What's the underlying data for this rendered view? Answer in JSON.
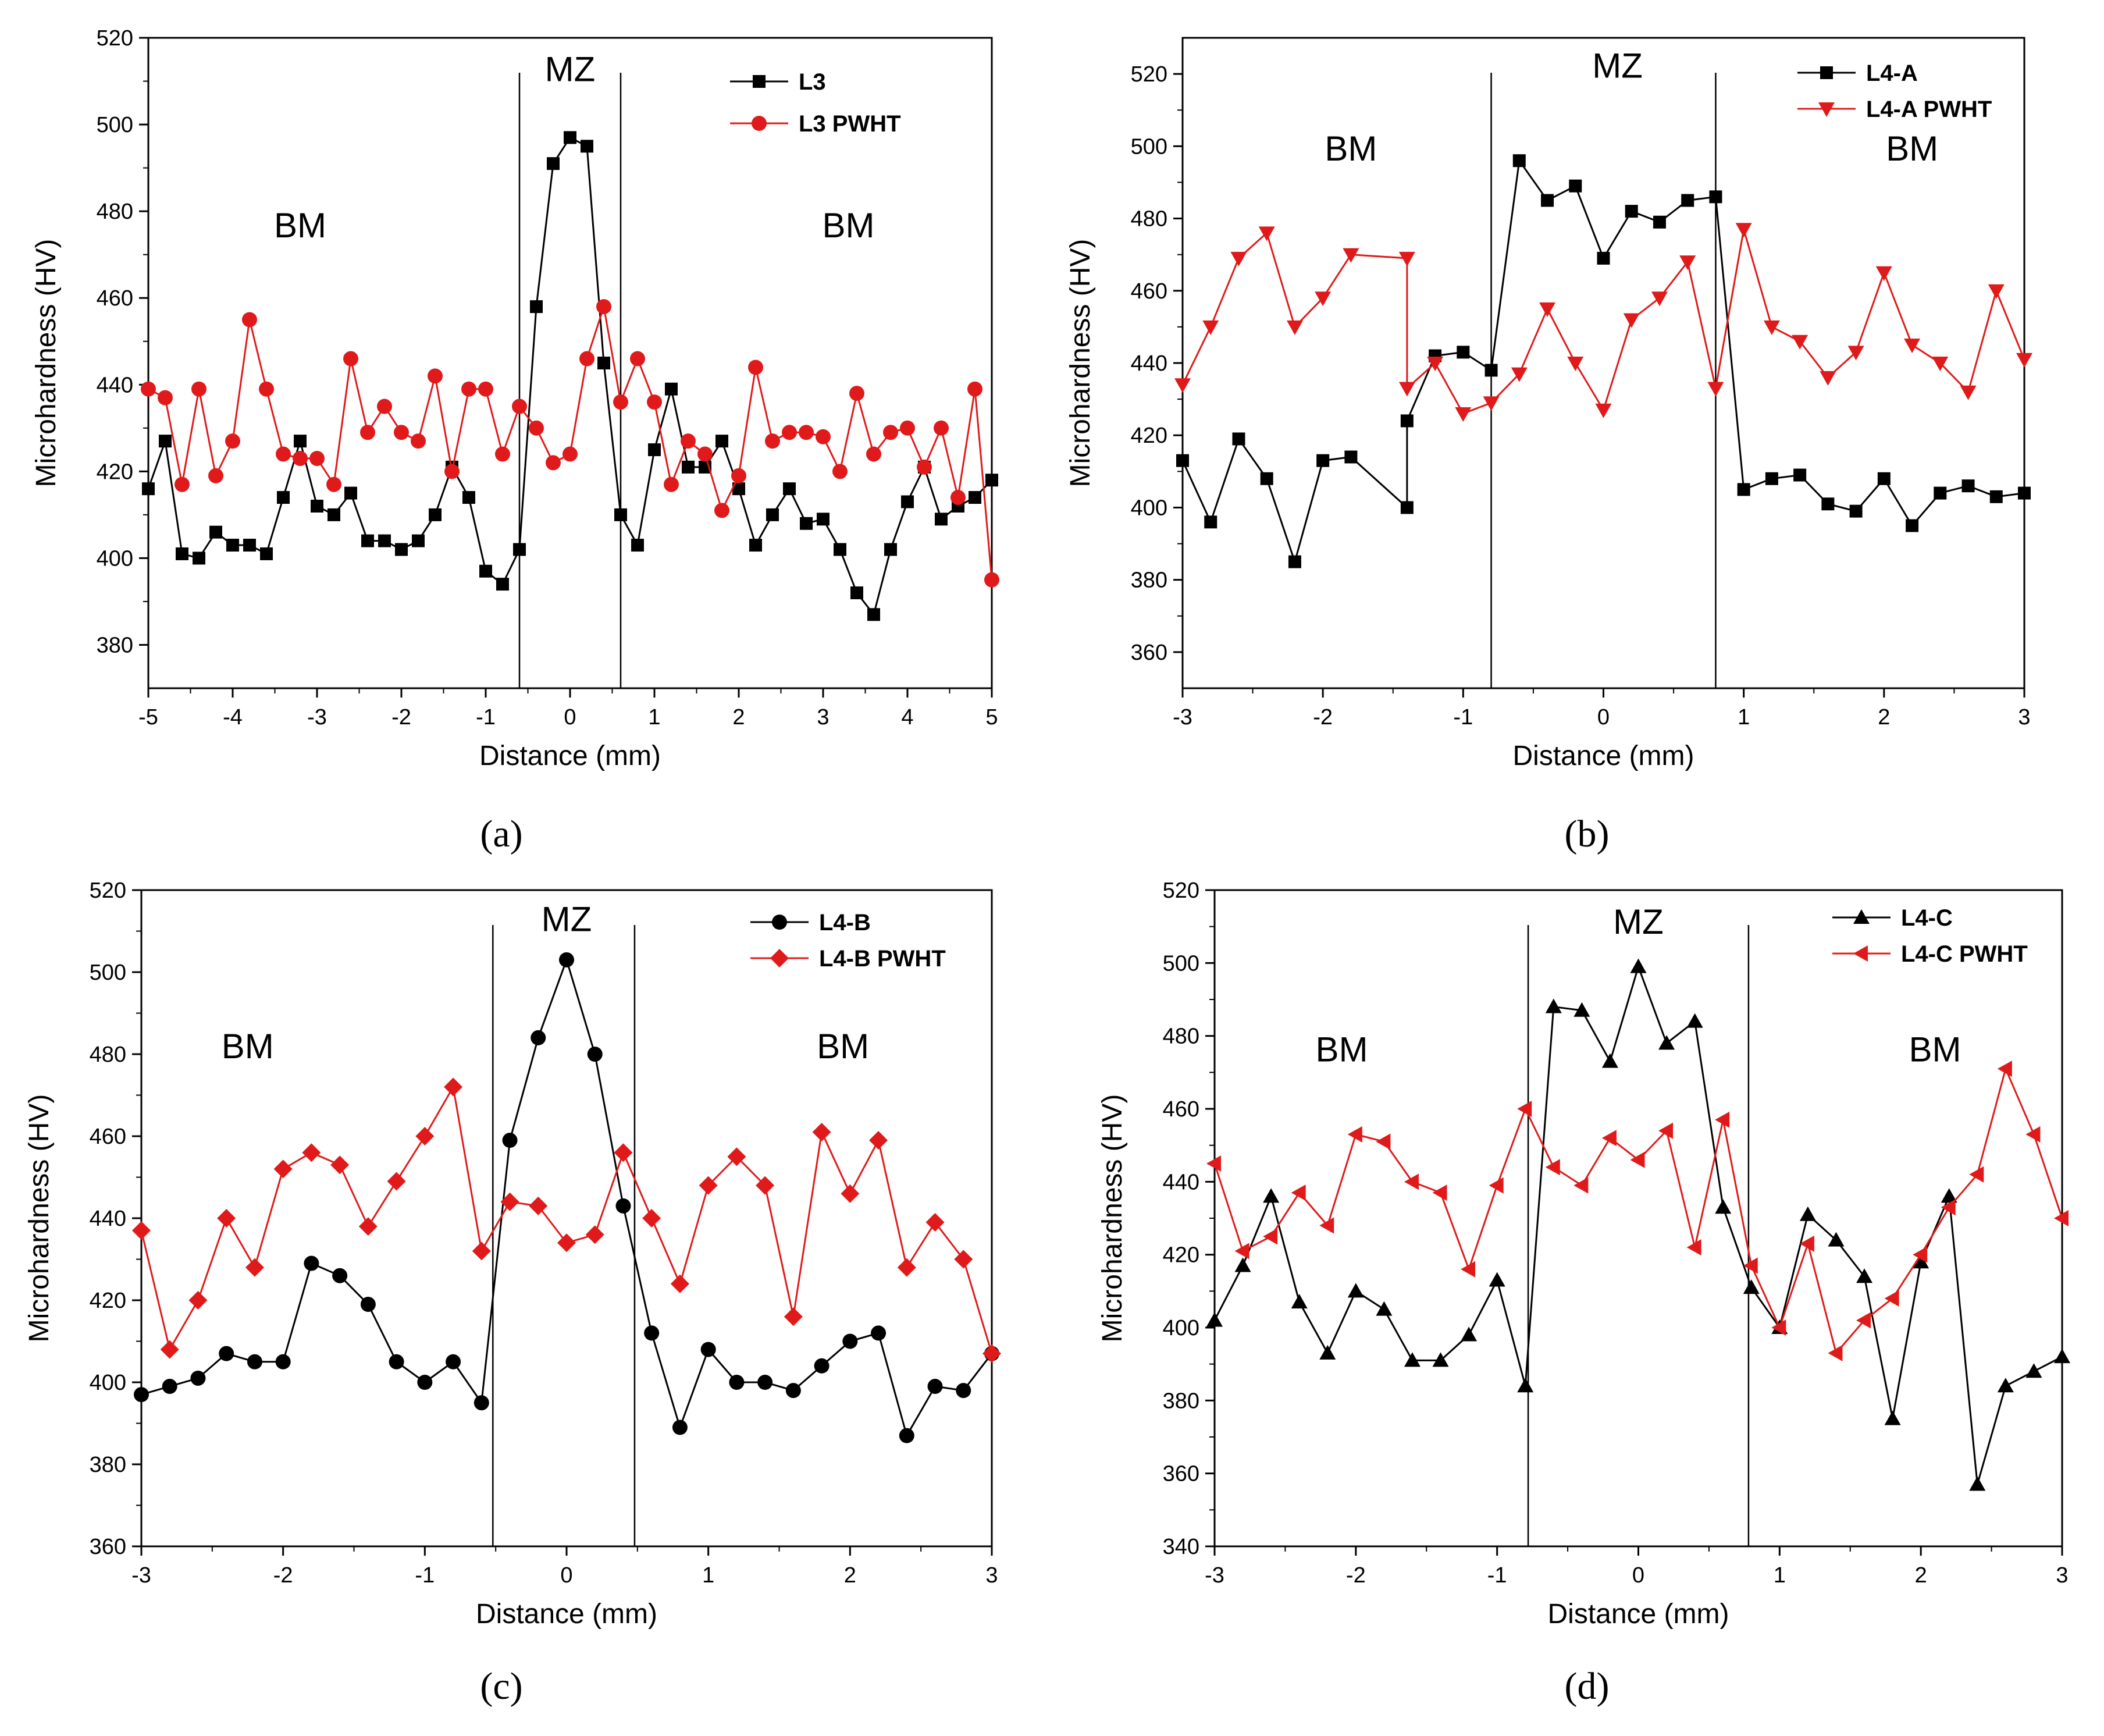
{
  "chart_data": [
    {
      "type": "line",
      "panel": "a",
      "caption": "(a)",
      "xlabel": "Distance (mm)",
      "ylabel": "Microhardness (HV)",
      "xlim": [
        -5,
        5
      ],
      "ylim": [
        370,
        520
      ],
      "xticks": [
        -5,
        -4,
        -3,
        -2,
        -1,
        0,
        1,
        2,
        3,
        4,
        5
      ],
      "yticks": [
        380,
        400,
        420,
        440,
        460,
        480,
        500,
        520
      ],
      "boundaries": [
        -0.6,
        0.6
      ],
      "legend_position": "top-right",
      "regions": [
        {
          "label": "MZ",
          "x": 0,
          "y": 510
        },
        {
          "label": "BM",
          "x": -3.2,
          "y": 474
        },
        {
          "label": "BM",
          "x": 3.3,
          "y": 474
        }
      ],
      "series": [
        {
          "name": "L3",
          "color": "#000000",
          "marker": "square",
          "x": [
            -5,
            -4.8,
            -4.6,
            -4.4,
            -4.2,
            -4,
            -3.8,
            -3.6,
            -3.4,
            -3.2,
            -3,
            -2.8,
            -2.6,
            -2.4,
            -2.2,
            -2,
            -1.8,
            -1.6,
            -1.4,
            -1.2,
            -1,
            -0.8,
            -0.6,
            -0.4,
            -0.2,
            0,
            0.2,
            0.4,
            0.6,
            0.8,
            1,
            1.2,
            1.4,
            1.6,
            1.8,
            2,
            2.2,
            2.4,
            2.6,
            2.8,
            3,
            3.2,
            3.4,
            3.6,
            3.8,
            4,
            4.2,
            4.4,
            4.6,
            4.8,
            5
          ],
          "y": [
            416,
            427,
            401,
            400,
            406,
            403,
            403,
            401,
            414,
            427,
            412,
            410,
            415,
            404,
            404,
            402,
            404,
            410,
            421,
            414,
            397,
            394,
            402,
            458,
            491,
            497,
            495,
            445,
            410,
            403,
            425,
            439,
            421,
            421,
            427,
            416,
            403,
            410,
            416,
            408,
            409,
            402,
            392,
            387,
            402,
            413,
            421,
            409,
            412,
            414,
            418
          ]
        },
        {
          "name": "L3 PWHT",
          "color": "#e01a1a",
          "marker": "circle",
          "x": [
            -5,
            -4.8,
            -4.6,
            -4.4,
            -4.2,
            -4,
            -3.8,
            -3.6,
            -3.4,
            -3.2,
            -3,
            -2.8,
            -2.6,
            -2.4,
            -2.2,
            -2,
            -1.8,
            -1.6,
            -1.4,
            -1.2,
            -1,
            -0.8,
            -0.6,
            -0.4,
            -0.2,
            0,
            0.2,
            0.4,
            0.6,
            0.8,
            1,
            1.2,
            1.4,
            1.6,
            1.8,
            2,
            2.2,
            2.4,
            2.6,
            2.8,
            3,
            3.2,
            3.4,
            3.6,
            3.8,
            4,
            4.2,
            4.4,
            4.6,
            4.8,
            5
          ],
          "y": [
            439,
            437,
            417,
            439,
            419,
            427,
            455,
            439,
            424,
            423,
            423,
            417,
            446,
            429,
            435,
            429,
            427,
            442,
            420,
            439,
            439,
            424,
            435,
            430,
            422,
            424,
            446,
            458,
            436,
            446,
            436,
            417,
            427,
            424,
            411,
            419,
            444,
            427,
            429,
            429,
            428,
            420,
            438,
            424,
            429,
            430,
            421,
            430,
            414,
            439,
            395
          ]
        }
      ]
    },
    {
      "type": "line",
      "panel": "b",
      "caption": "(b)",
      "xlabel": "Distance (mm)",
      "ylabel": "Microhardness (HV)",
      "xlim": [
        -3,
        3
      ],
      "ylim": [
        350,
        530
      ],
      "xticks": [
        -3,
        -2,
        -1,
        0,
        1,
        2,
        3
      ],
      "yticks": [
        360,
        380,
        400,
        420,
        440,
        460,
        480,
        500,
        520
      ],
      "boundaries": [
        -0.8,
        0.8
      ],
      "legend_position": "top-right",
      "regions": [
        {
          "label": "MZ",
          "x": 0.1,
          "y": 519
        },
        {
          "label": "BM",
          "x": -1.8,
          "y": 496
        },
        {
          "label": "BM",
          "x": 2.2,
          "y": 496
        }
      ],
      "series": [
        {
          "name": "L4-A",
          "color": "#000000",
          "marker": "square",
          "x": [
            -3,
            -2.8,
            -2.6,
            -2.4,
            -2.2,
            -2,
            -1.8,
            -1.4,
            -1.4,
            -1.2,
            -1,
            -0.8,
            -0.6,
            -0.4,
            -0.2,
            0,
            0.2,
            0.4,
            0.6,
            0.8,
            1,
            1.2,
            1.4,
            1.6,
            1.8,
            2,
            2.2,
            2.4,
            2.6,
            2.8,
            3
          ],
          "y": [
            413,
            396,
            419,
            408,
            385,
            413,
            414,
            400,
            424,
            442,
            443,
            438,
            496,
            485,
            489,
            469,
            482,
            479,
            485,
            486,
            405,
            408,
            409,
            401,
            399,
            408,
            395,
            404,
            406,
            403,
            404
          ]
        },
        {
          "name": "L4-A PWHT",
          "color": "#e01a1a",
          "marker": "triangle-down",
          "x": [
            -3,
            -2.8,
            -2.6,
            -2.4,
            -2.2,
            -2,
            -1.8,
            -1.4,
            -1.4,
            -1.2,
            -1,
            -0.8,
            -0.6,
            -0.4,
            -0.2,
            0,
            0.2,
            0.4,
            0.6,
            0.8,
            1,
            1.2,
            1.4,
            1.6,
            1.8,
            2,
            2.2,
            2.4,
            2.6,
            2.8,
            3
          ],
          "y": [
            434,
            450,
            469,
            476,
            450,
            458,
            470,
            469,
            433,
            440,
            426,
            429,
            437,
            455,
            440,
            427,
            452,
            458,
            468,
            433,
            477,
            450,
            446,
            436,
            443,
            465,
            445,
            440,
            432,
            460,
            441
          ]
        }
      ]
    },
    {
      "type": "line",
      "panel": "c",
      "caption": "(c)",
      "xlabel": "Distance (mm)",
      "ylabel": "Microhardness (HV)",
      "xlim": [
        -3,
        3
      ],
      "ylim": [
        360,
        520
      ],
      "xticks": [
        -3,
        -2,
        -1,
        0,
        1,
        2,
        3
      ],
      "yticks": [
        360,
        380,
        400,
        420,
        440,
        460,
        480,
        500,
        520
      ],
      "boundaries": [
        -0.52,
        0.48
      ],
      "legend_position": "top-right",
      "regions": [
        {
          "label": "MZ",
          "x": 0,
          "y": 510
        },
        {
          "label": "BM",
          "x": -2.25,
          "y": 479
        },
        {
          "label": "BM",
          "x": 1.95,
          "y": 479
        }
      ],
      "series": [
        {
          "name": "L4-B",
          "color": "#000000",
          "marker": "circle",
          "x": [
            -3,
            -2.8,
            -2.6,
            -2.4,
            -2.2,
            -2,
            -1.8,
            -1.6,
            -1.4,
            -1.2,
            -1,
            -0.8,
            -0.6,
            -0.4,
            -0.2,
            0,
            0.2,
            0.4,
            0.6,
            0.8,
            1,
            1.2,
            1.4,
            1.6,
            1.8,
            2,
            2.2,
            2.4,
            2.6,
            2.8,
            3
          ],
          "y": [
            397,
            399,
            401,
            407,
            405,
            405,
            429,
            426,
            419,
            405,
            400,
            405,
            395,
            459,
            484,
            503,
            480,
            443,
            412,
            389,
            408,
            400,
            400,
            398,
            404,
            410,
            412,
            387,
            399,
            398,
            407
          ]
        },
        {
          "name": "L4-B PWHT",
          "color": "#e01a1a",
          "marker": "diamond",
          "x": [
            -3,
            -2.8,
            -2.6,
            -2.4,
            -2.2,
            -2,
            -1.8,
            -1.6,
            -1.4,
            -1.2,
            -1,
            -0.8,
            -0.6,
            -0.4,
            -0.2,
            0,
            0.2,
            0.4,
            0.6,
            0.8,
            1,
            1.2,
            1.4,
            1.6,
            1.8,
            2,
            2.2,
            2.4,
            2.6,
            2.8,
            3
          ],
          "y": [
            437,
            408,
            420,
            440,
            428,
            452,
            456,
            453,
            438,
            449,
            460,
            472,
            432,
            444,
            443,
            434,
            436,
            456,
            440,
            424,
            448,
            455,
            448,
            416,
            461,
            446,
            459,
            428,
            439,
            430,
            407
          ]
        }
      ]
    },
    {
      "type": "line",
      "panel": "d",
      "caption": "(d)",
      "xlabel": "Distance (mm)",
      "ylabel": "Microhardness (HV)",
      "xlim": [
        -3,
        3
      ],
      "ylim": [
        340,
        520
      ],
      "xticks": [
        -3,
        -2,
        -1,
        0,
        1,
        2,
        3
      ],
      "yticks": [
        340,
        360,
        380,
        400,
        420,
        440,
        460,
        480,
        500,
        520
      ],
      "boundaries": [
        -0.78,
        0.78
      ],
      "legend_position": "top-right",
      "regions": [
        {
          "label": "MZ",
          "x": 0,
          "y": 508
        },
        {
          "label": "BM",
          "x": -2.1,
          "y": 473
        },
        {
          "label": "BM",
          "x": 2.1,
          "y": 473
        }
      ],
      "series": [
        {
          "name": "L4-C",
          "color": "#000000",
          "marker": "triangle-up",
          "x": [
            -3,
            -2.8,
            -2.6,
            -2.4,
            -2.2,
            -2,
            -1.8,
            -1.6,
            -1.4,
            -1.2,
            -1,
            -0.8,
            -0.6,
            -0.4,
            -0.2,
            0,
            0.2,
            0.4,
            0.6,
            0.8,
            1,
            1.2,
            1.4,
            1.6,
            1.8,
            2,
            2.2,
            2.4,
            2.6,
            2.8,
            3
          ],
          "y": [
            402,
            417,
            436,
            407,
            393,
            410,
            405,
            391,
            391,
            398,
            413,
            384,
            488,
            487,
            473,
            499,
            478,
            484,
            433,
            411,
            400,
            431,
            424,
            414,
            375,
            418,
            436,
            357,
            384,
            388,
            392
          ]
        },
        {
          "name": "L4-C PWHT",
          "color": "#e01a1a",
          "marker": "triangle-left",
          "x": [
            -3,
            -2.8,
            -2.6,
            -2.4,
            -2.2,
            -2,
            -1.8,
            -1.6,
            -1.4,
            -1.2,
            -1,
            -0.8,
            -0.6,
            -0.4,
            -0.2,
            0,
            0.2,
            0.4,
            0.6,
            0.8,
            1,
            1.2,
            1.4,
            1.6,
            1.8,
            2,
            2.2,
            2.4,
            2.6,
            2.8,
            3
          ],
          "y": [
            445,
            421,
            425,
            437,
            428,
            453,
            451,
            440,
            437,
            416,
            439,
            460,
            444,
            439,
            452,
            446,
            454,
            422,
            457,
            417,
            400,
            423,
            393,
            402,
            408,
            420,
            433,
            442,
            471,
            453,
            430
          ]
        }
      ]
    }
  ]
}
